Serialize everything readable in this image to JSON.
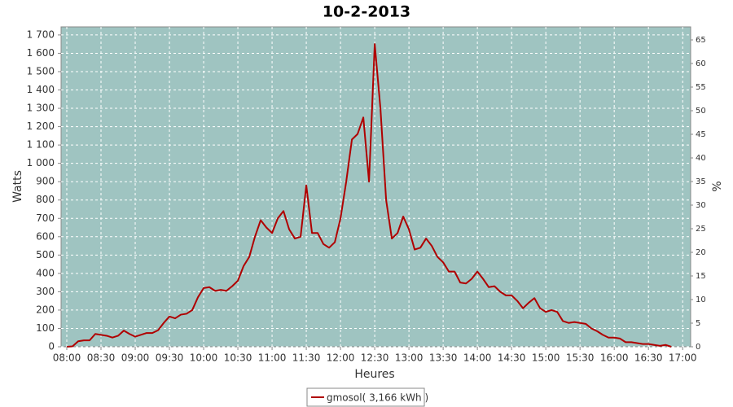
{
  "chart_data": {
    "type": "line",
    "title": "10-2-2013",
    "xlabel": "Heures",
    "ylabel": "Watts",
    "y2label": "%",
    "x": [
      "08:00",
      "08:05",
      "08:10",
      "08:15",
      "08:20",
      "08:25",
      "08:30",
      "08:35",
      "08:40",
      "08:45",
      "08:50",
      "08:55",
      "09:00",
      "09:05",
      "09:10",
      "09:15",
      "09:20",
      "09:25",
      "09:30",
      "09:35",
      "09:40",
      "09:45",
      "09:50",
      "09:55",
      "10:00",
      "10:05",
      "10:10",
      "10:15",
      "10:20",
      "10:25",
      "10:30",
      "10:35",
      "10:40",
      "10:45",
      "10:50",
      "10:55",
      "11:00",
      "11:05",
      "11:10",
      "11:15",
      "11:20",
      "11:25",
      "11:30",
      "11:35",
      "11:40",
      "11:45",
      "11:50",
      "11:55",
      "12:00",
      "12:05",
      "12:10",
      "12:15",
      "12:20",
      "12:25",
      "12:30",
      "12:35",
      "12:40",
      "12:45",
      "12:50",
      "12:55",
      "13:00",
      "13:05",
      "13:10",
      "13:15",
      "13:20",
      "13:25",
      "13:30",
      "13:35",
      "13:40",
      "13:45",
      "13:50",
      "13:55",
      "14:00",
      "14:05",
      "14:10",
      "14:15",
      "14:20",
      "14:25",
      "14:30",
      "14:35",
      "14:40",
      "14:45",
      "14:50",
      "14:55",
      "15:00",
      "15:05",
      "15:10",
      "15:15",
      "15:20",
      "15:25",
      "15:30",
      "15:35",
      "15:40",
      "15:45",
      "15:50",
      "15:55",
      "16:00",
      "16:05",
      "16:10",
      "16:15",
      "16:20",
      "16:25",
      "16:30",
      "16:35",
      "16:40",
      "16:45",
      "16:50"
    ],
    "series": [
      {
        "name": "gmosol( 3,166 kWh )",
        "color": "#b00000",
        "values": [
          0,
          2,
          30,
          35,
          35,
          70,
          65,
          60,
          50,
          60,
          88,
          70,
          55,
          65,
          75,
          75,
          90,
          130,
          165,
          155,
          175,
          180,
          200,
          270,
          320,
          325,
          305,
          310,
          305,
          330,
          360,
          440,
          490,
          600,
          690,
          650,
          620,
          700,
          740,
          640,
          590,
          600,
          880,
          620,
          620,
          560,
          540,
          570,
          700,
          900,
          1130,
          1160,
          1250,
          900,
          1650,
          1300,
          800,
          590,
          620,
          710,
          640,
          530,
          540,
          590,
          550,
          490,
          460,
          410,
          410,
          350,
          345,
          370,
          410,
          370,
          325,
          330,
          300,
          280,
          280,
          250,
          210,
          240,
          265,
          210,
          190,
          200,
          190,
          140,
          130,
          135,
          130,
          125,
          100,
          85,
          65,
          50,
          50,
          45,
          25,
          25,
          20,
          15,
          15,
          10,
          5,
          10,
          0
        ]
      }
    ],
    "xlim": [
      "07:55",
      "17:07"
    ],
    "xticks": [
      "08:00",
      "08:30",
      "09:00",
      "09:30",
      "10:00",
      "10:30",
      "11:00",
      "11:30",
      "12:00",
      "12:30",
      "13:00",
      "13:30",
      "14:00",
      "14:30",
      "15:00",
      "15:30",
      "16:00",
      "16:30",
      "17:00"
    ],
    "ylim": [
      0,
      1744
    ],
    "yticks": [
      0,
      100,
      200,
      300,
      400,
      500,
      600,
      700,
      800,
      900,
      {
        "value": 1000,
        "label": "1 000"
      },
      {
        "value": 1100,
        "label": "1 100"
      },
      {
        "value": 1200,
        "label": "1 200"
      },
      {
        "value": 1300,
        "label": "1 300"
      },
      {
        "value": 1400,
        "label": "1 400"
      },
      {
        "value": 1500,
        "label": "1 500"
      },
      {
        "value": 1600,
        "label": "1 600"
      },
      {
        "value": 1700,
        "label": "1 700"
      }
    ],
    "y2lim": [
      0,
      67.76
    ],
    "y2ticks": [
      0,
      5,
      10,
      15,
      20,
      25,
      30,
      35,
      40,
      45,
      50,
      55,
      60,
      65
    ],
    "grid": true,
    "legend": "bottom"
  }
}
